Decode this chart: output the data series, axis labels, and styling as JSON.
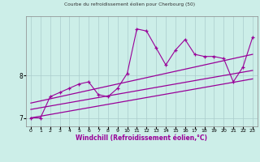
{
  "title": "Courbe du refroidissement éolien pour Cherbourg (50)",
  "xlabel": "Windchill (Refroidissement éolien,°C)",
  "bg_color": "#cceee8",
  "grid_color": "#aacccc",
  "line_color": "#990099",
  "x_data": [
    0,
    1,
    2,
    3,
    4,
    5,
    6,
    7,
    8,
    9,
    10,
    11,
    12,
    13,
    14,
    15,
    16,
    17,
    18,
    19,
    20,
    21,
    22,
    23
  ],
  "y_data": [
    7.0,
    7.0,
    7.5,
    7.6,
    7.7,
    7.8,
    7.85,
    7.55,
    7.5,
    7.7,
    8.05,
    9.1,
    9.05,
    8.65,
    8.25,
    8.6,
    8.85,
    8.5,
    8.45,
    8.45,
    8.4,
    7.85,
    8.2,
    8.9
  ],
  "reg_lower": [
    7.0,
    7.04,
    7.08,
    7.12,
    7.16,
    7.2,
    7.24,
    7.28,
    7.32,
    7.36,
    7.4,
    7.44,
    7.48,
    7.52,
    7.56,
    7.6,
    7.64,
    7.68,
    7.72,
    7.76,
    7.8,
    7.84,
    7.88,
    7.92
  ],
  "reg_mid": [
    7.2,
    7.24,
    7.28,
    7.32,
    7.36,
    7.4,
    7.44,
    7.48,
    7.52,
    7.56,
    7.6,
    7.64,
    7.68,
    7.72,
    7.76,
    7.8,
    7.84,
    7.88,
    7.92,
    7.96,
    8.0,
    8.04,
    8.08,
    8.12
  ],
  "reg_upper": [
    7.35,
    7.4,
    7.45,
    7.5,
    7.55,
    7.6,
    7.65,
    7.7,
    7.75,
    7.8,
    7.85,
    7.9,
    7.95,
    8.0,
    8.05,
    8.1,
    8.15,
    8.2,
    8.25,
    8.3,
    8.35,
    8.4,
    8.45,
    8.5
  ],
  "ylim": [
    6.8,
    9.4
  ],
  "xlim": [
    -0.5,
    23.5
  ],
  "yticks": [
    7,
    8
  ],
  "xticks": [
    0,
    1,
    2,
    3,
    4,
    5,
    6,
    7,
    8,
    9,
    10,
    11,
    12,
    13,
    14,
    15,
    16,
    17,
    18,
    19,
    20,
    21,
    22,
    23
  ]
}
